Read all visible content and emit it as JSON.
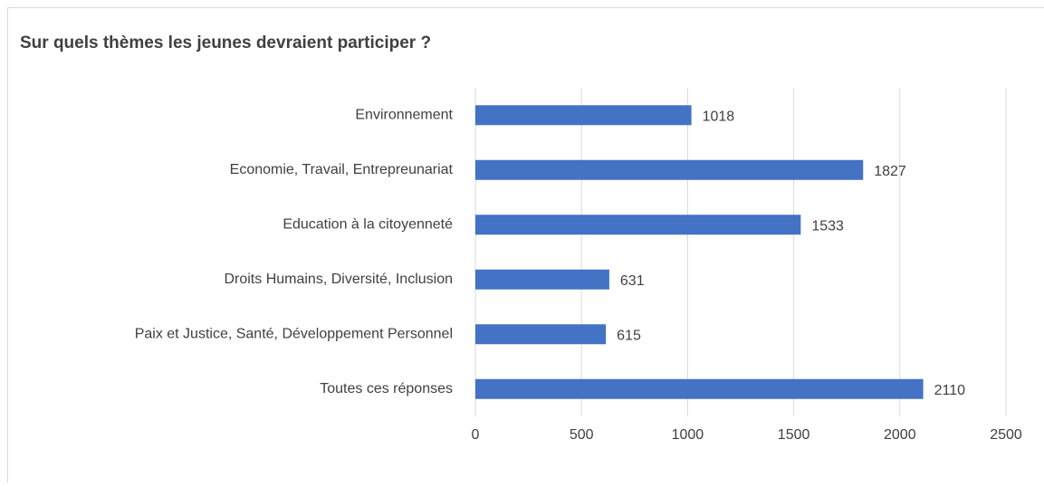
{
  "chart_data": {
    "type": "barh",
    "title": "Sur quels thèmes les jeunes devraient participer ?",
    "categories": [
      "Environnement",
      "Economie, Travail, Entrepreunariat",
      "Education à la citoyenneté",
      "Droits Humains, Diversité, Inclusion",
      "Paix et Justice, Santé, Développement Personnel",
      "Toutes ces réponses"
    ],
    "values": [
      1018,
      1827,
      1533,
      631,
      615,
      2110
    ],
    "color": "#4472c4",
    "xlim": [
      0,
      2500
    ],
    "xticks": [
      0,
      500,
      1000,
      1500,
      2000,
      2500
    ],
    "grid": true
  }
}
